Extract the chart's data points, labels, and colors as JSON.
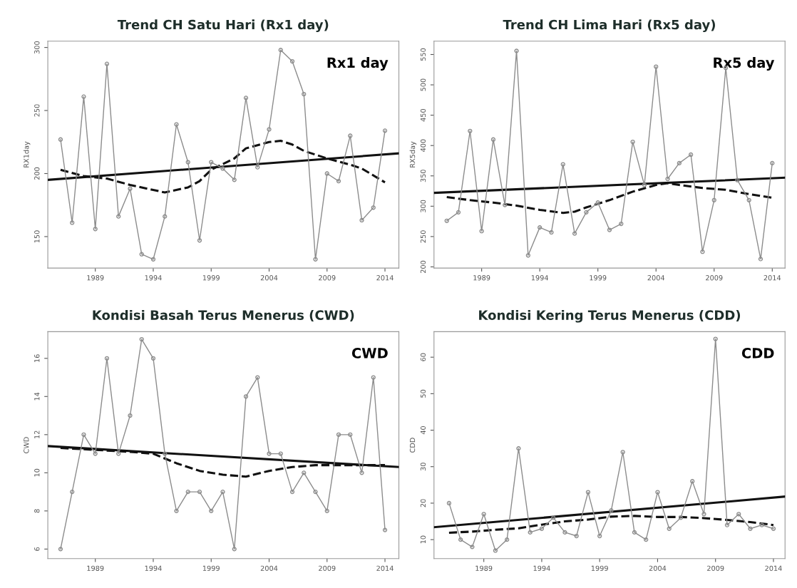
{
  "chart_data": [
    {
      "type": "line",
      "title": "Trend CH Satu Hari (Rx1 day)",
      "ylabel": "RX1day",
      "annotations": [
        "Rx1 day"
      ],
      "x": [
        1986,
        1987,
        1988,
        1989,
        1990,
        1991,
        1992,
        1993,
        1994,
        1995,
        1996,
        1997,
        1998,
        1999,
        2000,
        2001,
        2002,
        2003,
        2004,
        2005,
        2006,
        2007,
        2008,
        2009,
        2010,
        2011,
        2012,
        2013,
        2014
      ],
      "xlim": [
        1984.9,
        2015.2
      ],
      "xticks": [
        1989,
        1994,
        1999,
        2004,
        2009,
        2014
      ],
      "ylim": [
        125,
        305
      ],
      "yticks": [
        150,
        200,
        250,
        300
      ],
      "grid": false,
      "series": [
        {
          "color": "#8c8c8c",
          "marker": "circle",
          "line_style": "solid",
          "values": [
            227,
            161,
            261,
            156,
            287,
            166,
            188,
            136,
            132,
            166,
            239,
            209,
            147,
            209,
            204,
            195,
            260,
            205,
            235,
            298,
            289,
            263,
            132,
            200,
            194,
            230,
            163,
            173,
            234
          ]
        },
        {
          "color": "#111111",
          "marker": "none",
          "line_style": "solid",
          "x": [
            1984.9,
            2015.2
          ],
          "values": [
            195,
            216
          ]
        },
        {
          "color": "#111111",
          "marker": "none",
          "line_style": "dashed",
          "x": [
            1986,
            1988,
            1990,
            1992,
            1994,
            1995,
            1997,
            1998,
            1999,
            2001,
            2002,
            2004,
            2005,
            2006,
            2007,
            2009,
            2011,
            2012,
            2014
          ],
          "values": [
            203,
            198,
            196,
            191,
            187,
            185,
            189,
            194,
            203,
            212,
            220,
            225,
            226,
            223,
            218,
            212,
            207,
            204,
            193
          ]
        }
      ]
    },
    {
      "type": "line",
      "title": "Trend CH Lima Hari (Rx5 day)",
      "ylabel": "RX5day",
      "annotations": [
        "Rx5 day"
      ],
      "x": [
        1986,
        1987,
        1988,
        1989,
        1990,
        1991,
        1992,
        1993,
        1994,
        1995,
        1996,
        1997,
        1998,
        1999,
        2000,
        2001,
        2002,
        2003,
        2004,
        2005,
        2006,
        2007,
        2008,
        2009,
        2010,
        2011,
        2012,
        2013,
        2014
      ],
      "xlim": [
        1984.9,
        2015.1
      ],
      "xticks": [
        1989,
        1994,
        1999,
        2004,
        2009,
        2014
      ],
      "ylim": [
        198,
        572
      ],
      "yticks": [
        200,
        250,
        300,
        350,
        400,
        450,
        500,
        550
      ],
      "grid": false,
      "series": [
        {
          "color": "#8c8c8c",
          "marker": "circle",
          "line_style": "solid",
          "values": [
            276,
            290,
            424,
            259,
            410,
            302,
            556,
            219,
            265,
            257,
            369,
            255,
            290,
            306,
            261,
            271,
            406,
            335,
            530,
            345,
            371,
            385,
            225,
            310,
            528,
            343,
            310,
            213,
            371
          ]
        },
        {
          "color": "#111111",
          "marker": "none",
          "line_style": "solid",
          "x": [
            1984.9,
            2015.1
          ],
          "values": [
            322,
            347
          ]
        },
        {
          "color": "#111111",
          "marker": "none",
          "line_style": "dashed",
          "x": [
            1986,
            1988,
            1990,
            1992,
            1994,
            1996,
            1997,
            1998,
            2000,
            2002,
            2004,
            2005,
            2006,
            2008,
            2010,
            2012,
            2014
          ],
          "values": [
            315,
            310,
            306,
            301,
            294,
            289,
            291,
            298,
            310,
            324,
            335,
            338,
            335,
            330,
            327,
            320,
            314
          ]
        }
      ]
    },
    {
      "type": "line",
      "title": "Kondisi Basah Terus Menerus (CWD)",
      "ylabel": "CWD",
      "annotations": [
        "CWD"
      ],
      "x": [
        1986,
        1987,
        1988,
        1989,
        1990,
        1991,
        1992,
        1993,
        1994,
        1995,
        1996,
        1997,
        1998,
        1999,
        2000,
        2001,
        2002,
        2003,
        2004,
        2005,
        2006,
        2007,
        2008,
        2009,
        2010,
        2011,
        2012,
        2013,
        2014
      ],
      "xlim": [
        1984.9,
        2015.2
      ],
      "xticks": [
        1989,
        1994,
        1999,
        2004,
        2009,
        2014
      ],
      "ylim": [
        5.5,
        17.4
      ],
      "yticks": [
        6,
        8,
        10,
        12,
        14,
        16
      ],
      "grid": false,
      "series": [
        {
          "color": "#8c8c8c",
          "marker": "circle",
          "line_style": "solid",
          "values": [
            6,
            9,
            12,
            11,
            16,
            11,
            13,
            17,
            16,
            11,
            8,
            9,
            9,
            8,
            9,
            6,
            14,
            15,
            11,
            11,
            9,
            10,
            9,
            8,
            12,
            12,
            10,
            15,
            7
          ]
        },
        {
          "color": "#111111",
          "marker": "none",
          "line_style": "solid",
          "x": [
            1984.9,
            2015.2
          ],
          "values": [
            11.4,
            10.3
          ]
        },
        {
          "color": "#111111",
          "marker": "none",
          "line_style": "dashed",
          "x": [
            1986,
            1989,
            1992,
            1994,
            1996,
            1998,
            2000,
            2002,
            2004,
            2006,
            2008,
            2010,
            2012,
            2014
          ],
          "values": [
            11.3,
            11.2,
            11.1,
            11.0,
            10.5,
            10.1,
            9.9,
            9.8,
            10.1,
            10.3,
            10.4,
            10.4,
            10.4,
            10.4
          ]
        }
      ]
    },
    {
      "type": "line",
      "title": "Kondisi Kering Terus Menerus (CDD)",
      "ylabel": "CDD",
      "annotations": [
        "CDD"
      ],
      "x": [
        1986,
        1987,
        1988,
        1989,
        1990,
        1991,
        1992,
        1993,
        1994,
        1995,
        1996,
        1997,
        1998,
        1999,
        2000,
        2001,
        2002,
        2003,
        2004,
        2005,
        2006,
        2007,
        2008,
        2009,
        2010,
        2011,
        2012,
        2013,
        2014
      ],
      "xlim": [
        1984.7,
        2015
      ],
      "xticks": [
        1989,
        1994,
        1999,
        2004,
        2009,
        2014
      ],
      "ylim": [
        4.8,
        67
      ],
      "yticks": [
        10,
        20,
        30,
        40,
        50,
        60
      ],
      "grid": false,
      "series": [
        {
          "color": "#8c8c8c",
          "marker": "circle",
          "line_style": "solid",
          "values": [
            20,
            10,
            8,
            17,
            7,
            10,
            35,
            12,
            13,
            16,
            12,
            11,
            23,
            11,
            18,
            34,
            12,
            10,
            23,
            13,
            16,
            26,
            17,
            65,
            14,
            17,
            13,
            14,
            13
          ]
        },
        {
          "color": "#111111",
          "marker": "none",
          "line_style": "solid",
          "x": [
            1984.7,
            2015
          ],
          "values": [
            13.4,
            21.8
          ]
        },
        {
          "color": "#111111",
          "marker": "none",
          "line_style": "dashed",
          "x": [
            1986,
            1988,
            1990,
            1992,
            1994,
            1996,
            1998,
            2000,
            2002,
            2004,
            2006,
            2008,
            2010,
            2012,
            2014
          ],
          "values": [
            11.9,
            12.2,
            12.7,
            13.1,
            14.1,
            15.0,
            15.5,
            16.3,
            16.5,
            16.2,
            16.2,
            15.9,
            15.4,
            14.8,
            14.0
          ]
        }
      ]
    }
  ]
}
